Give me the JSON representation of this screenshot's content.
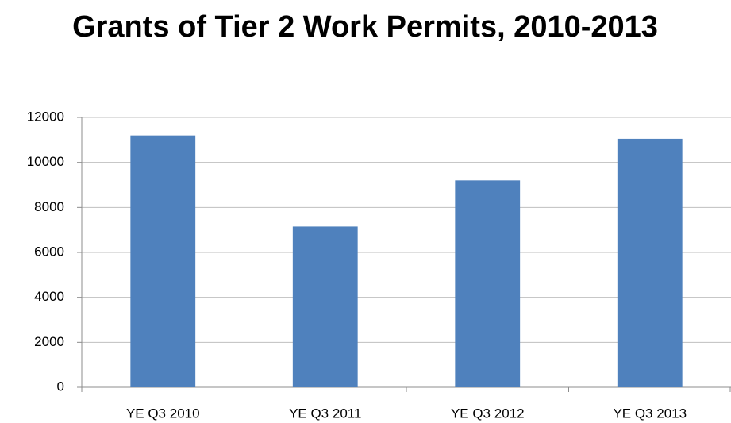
{
  "chart_data": {
    "type": "bar",
    "title": "Grants of Tier 2 Work Permits, 2010-2013",
    "categories": [
      "YE Q3 2010",
      "YE Q3 2011",
      "YE Q3 2012",
      "YE Q3 2013"
    ],
    "values": [
      11200,
      7150,
      9200,
      11050
    ],
    "color": "#4f81bd",
    "ylim": [
      0,
      12000
    ],
    "yticks": [
      0,
      2000,
      4000,
      6000,
      8000,
      10000,
      12000
    ],
    "grid": true
  }
}
